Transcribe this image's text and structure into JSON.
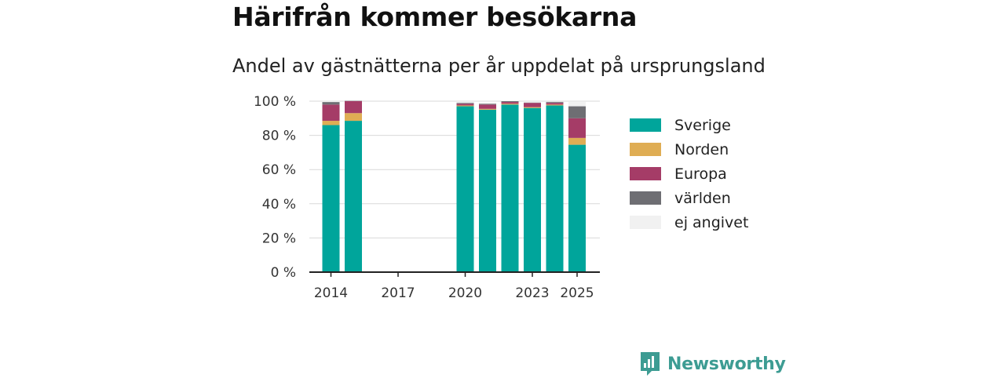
{
  "header": {
    "title": "Härifrån kommer besökarna",
    "subtitle": "Andel av gästnätterna per år uppdelat på ursprungsland"
  },
  "brand": {
    "name": "Newsworthy",
    "icon": "newsworthy-logo-icon",
    "color": "#3d9c93"
  },
  "chart_data": {
    "type": "bar",
    "stacked": true,
    "categories": [
      "2014",
      "2015",
      "2016",
      "2017",
      "2018",
      "2019",
      "2020",
      "2021",
      "2022",
      "2023",
      "2024",
      "2025"
    ],
    "x_tick_labels": [
      "2014",
      "2017",
      "2020",
      "2023",
      "2025"
    ],
    "y_ticks": [
      0,
      20,
      40,
      60,
      80,
      100
    ],
    "y_tick_format": "{v} %",
    "ylim": [
      0,
      100
    ],
    "grid": true,
    "legend_position": "right",
    "series": [
      {
        "name": "Sverige",
        "color": "#00a59b",
        "values": [
          86,
          88.5,
          null,
          null,
          null,
          null,
          97,
          95,
          98,
          96,
          97.5,
          74.5
        ]
      },
      {
        "name": "Norden",
        "color": "#dfad54",
        "values": [
          2.5,
          4.5,
          null,
          null,
          null,
          null,
          0.5,
          0.5,
          0.5,
          0.5,
          0.5,
          4
        ]
      },
      {
        "name": "Europa",
        "color": "#a53c67",
        "values": [
          9.5,
          7,
          null,
          null,
          null,
          null,
          1,
          2.5,
          1,
          2.5,
          1,
          11.5
        ]
      },
      {
        "name": "världen",
        "color": "#6e6e73",
        "values": [
          1.5,
          0.2,
          null,
          null,
          null,
          null,
          0.5,
          0.5,
          0.5,
          0.2,
          0.5,
          7
        ]
      },
      {
        "name": "ej angivet",
        "color": "#f1f1f1",
        "values": [
          0.5,
          0,
          null,
          null,
          null,
          null,
          0.5,
          0.5,
          0.3,
          0.3,
          0.3,
          2.5
        ]
      }
    ]
  }
}
